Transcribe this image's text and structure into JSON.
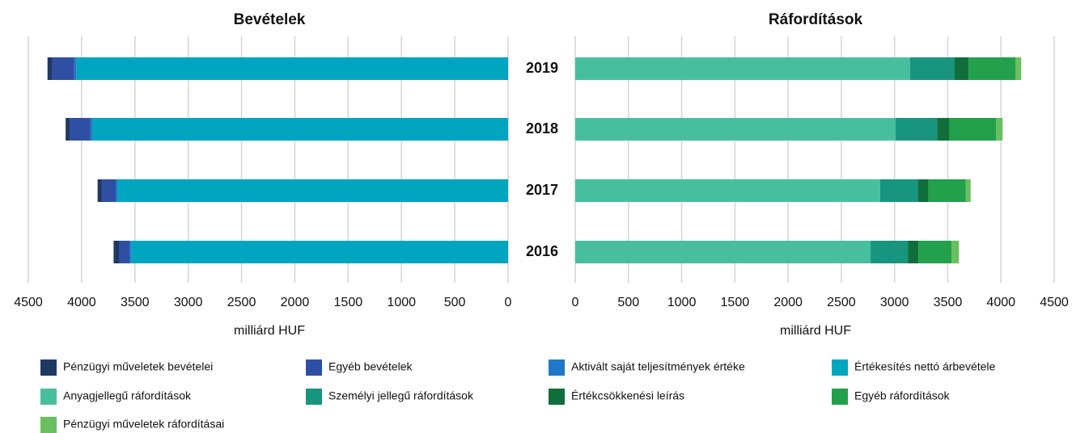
{
  "chart_data": [
    {
      "type": "bar",
      "title": "Bevételek",
      "xlabel": "milliárd HUF",
      "categories": [
        "2019",
        "2018",
        "2017",
        "2016"
      ],
      "xlim": [
        4500,
        0
      ],
      "xticks": [
        4500,
        4000,
        3500,
        3000,
        2500,
        2000,
        1500,
        1000,
        500,
        0
      ],
      "grid": true,
      "series": [
        {
          "name": "Pénzügyi műveletek bevételei",
          "color": "#1f3864",
          "values": [
            40,
            40,
            40,
            50
          ]
        },
        {
          "name": "Egyéb bevételek",
          "color": "#2e4fa3",
          "values": [
            210,
            190,
            130,
            100
          ]
        },
        {
          "name": "Aktivált saját teljesítmények értéke",
          "color": "#1f77c8",
          "values": [
            20,
            20,
            15,
            15
          ]
        },
        {
          "name": "Értékesítés nettó árbevétele",
          "color": "#00a5c0",
          "values": [
            4050,
            3900,
            3665,
            3535
          ]
        }
      ]
    },
    {
      "type": "bar",
      "title": "Ráfordítások",
      "xlabel": "milliárd HUF",
      "xlim": [
        0,
        4500
      ],
      "xticks": [
        0,
        500,
        1000,
        1500,
        2000,
        2500,
        3000,
        3500,
        4000,
        4500
      ],
      "grid": true,
      "series": [
        {
          "name": "Anyagjellegű ráfordítások",
          "color": "#47bf9f",
          "values": [
            3145,
            3010,
            2865,
            2775
          ]
        },
        {
          "name": "Személyi jellegű ráfordítások",
          "color": "#17957e",
          "values": [
            420,
            390,
            355,
            350
          ]
        },
        {
          "name": "Értékcsökkenési leírás",
          "color": "#0f6e3a",
          "values": [
            130,
            115,
            100,
            100
          ]
        },
        {
          "name": "Egyéb ráfordítások",
          "color": "#22a04b",
          "values": [
            440,
            440,
            350,
            310
          ]
        },
        {
          "name": "Pénzügyi műveletek ráfordításai",
          "color": "#6abf5e",
          "values": [
            55,
            60,
            45,
            70
          ]
        }
      ]
    }
  ]
}
